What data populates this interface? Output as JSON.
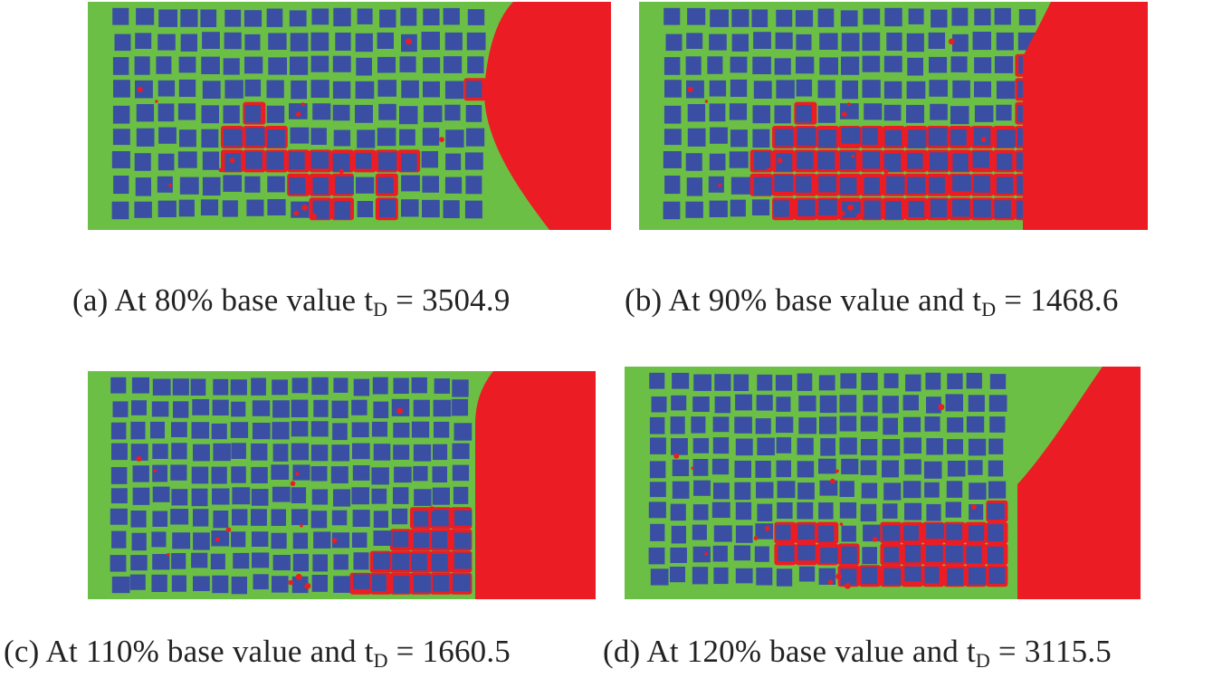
{
  "colors": {
    "background_green": "#6cbf45",
    "grain_blue": "#3a4fa3",
    "fracture_red": "#ec1c24"
  },
  "panels": [
    {
      "id": "a",
      "caption": {
        "prefix": "(a) At 80% base value t",
        "subscript": "D",
        "suffix": " = 3504.9"
      },
      "cols": 17,
      "rows": 9,
      "red_cells": [
        [
          6,
          4
        ],
        [
          5,
          5
        ],
        [
          6,
          5
        ],
        [
          7,
          5
        ],
        [
          5,
          6
        ],
        [
          6,
          6
        ],
        [
          7,
          6
        ],
        [
          8,
          6
        ],
        [
          9,
          6
        ],
        [
          10,
          6
        ],
        [
          11,
          6
        ],
        [
          12,
          6
        ],
        [
          13,
          6
        ],
        [
          8,
          7
        ],
        [
          9,
          7
        ],
        [
          10,
          7
        ],
        [
          12,
          7
        ],
        [
          9,
          8
        ],
        [
          10,
          8
        ],
        [
          12,
          8
        ],
        [
          16,
          3
        ]
      ],
      "front": {
        "type": "curve"
      }
    },
    {
      "id": "b",
      "caption": {
        "prefix": "(b) At 90% base value and t",
        "subscript": "D",
        "suffix": " = 1468.6"
      },
      "cols": 17,
      "rows": 9,
      "red_cells": [
        [
          6,
          4
        ],
        [
          6,
          5
        ],
        [
          5,
          5
        ],
        [
          7,
          5
        ],
        [
          8,
          5
        ],
        [
          9,
          5
        ],
        [
          10,
          5
        ],
        [
          11,
          5
        ],
        [
          12,
          5
        ],
        [
          13,
          5
        ],
        [
          14,
          5
        ],
        [
          15,
          5
        ],
        [
          16,
          5
        ],
        [
          4,
          6
        ],
        [
          5,
          6
        ],
        [
          6,
          6
        ],
        [
          7,
          6
        ],
        [
          8,
          6
        ],
        [
          9,
          6
        ],
        [
          10,
          6
        ],
        [
          11,
          6
        ],
        [
          12,
          6
        ],
        [
          13,
          6
        ],
        [
          14,
          6
        ],
        [
          15,
          6
        ],
        [
          16,
          6
        ],
        [
          4,
          7
        ],
        [
          5,
          7
        ],
        [
          6,
          7
        ],
        [
          7,
          7
        ],
        [
          8,
          7
        ],
        [
          9,
          7
        ],
        [
          10,
          7
        ],
        [
          11,
          7
        ],
        [
          12,
          7
        ],
        [
          13,
          7
        ],
        [
          14,
          7
        ],
        [
          15,
          7
        ],
        [
          16,
          7
        ],
        [
          5,
          8
        ],
        [
          6,
          8
        ],
        [
          7,
          8
        ],
        [
          8,
          8
        ],
        [
          9,
          8
        ],
        [
          10,
          8
        ],
        [
          11,
          8
        ],
        [
          12,
          8
        ],
        [
          13,
          8
        ],
        [
          14,
          8
        ],
        [
          15,
          8
        ],
        [
          16,
          8
        ],
        [
          16,
          2
        ],
        [
          16,
          3
        ],
        [
          16,
          4
        ]
      ],
      "front": {
        "type": "diagonal-top"
      }
    },
    {
      "id": "c",
      "caption": {
        "prefix": "(c) At 110% base value and t",
        "subscript": "D",
        "suffix": " = 1660.5"
      },
      "cols": 18,
      "rows": 10,
      "red_cells": [
        [
          15,
          6
        ],
        [
          16,
          6
        ],
        [
          17,
          6
        ],
        [
          14,
          7
        ],
        [
          15,
          7
        ],
        [
          16,
          7
        ],
        [
          17,
          7
        ],
        [
          13,
          8
        ],
        [
          14,
          8
        ],
        [
          15,
          8
        ],
        [
          16,
          8
        ],
        [
          17,
          8
        ],
        [
          12,
          9
        ],
        [
          13,
          9
        ],
        [
          14,
          9
        ],
        [
          15,
          9
        ],
        [
          16,
          9
        ],
        [
          17,
          9
        ]
      ],
      "front": {
        "type": "vertical"
      }
    },
    {
      "id": "d",
      "caption": {
        "prefix": "(d) At 120% base value and t",
        "subscript": "D",
        "suffix": " = 3115.5"
      },
      "cols": 17,
      "rows": 10,
      "red_cells": [
        [
          6,
          7
        ],
        [
          7,
          7
        ],
        [
          8,
          7
        ],
        [
          6,
          8
        ],
        [
          7,
          8
        ],
        [
          8,
          8
        ],
        [
          9,
          8
        ],
        [
          11,
          7
        ],
        [
          12,
          7
        ],
        [
          13,
          7
        ],
        [
          14,
          7
        ],
        [
          15,
          7
        ],
        [
          16,
          7
        ],
        [
          11,
          8
        ],
        [
          12,
          8
        ],
        [
          13,
          8
        ],
        [
          14,
          8
        ],
        [
          15,
          8
        ],
        [
          16,
          8
        ],
        [
          9,
          9
        ],
        [
          10,
          9
        ],
        [
          11,
          9
        ],
        [
          12,
          9
        ],
        [
          13,
          9
        ],
        [
          14,
          9
        ],
        [
          15,
          9
        ],
        [
          16,
          9
        ],
        [
          16,
          6
        ]
      ],
      "front": {
        "type": "diagonal-mid"
      }
    }
  ]
}
